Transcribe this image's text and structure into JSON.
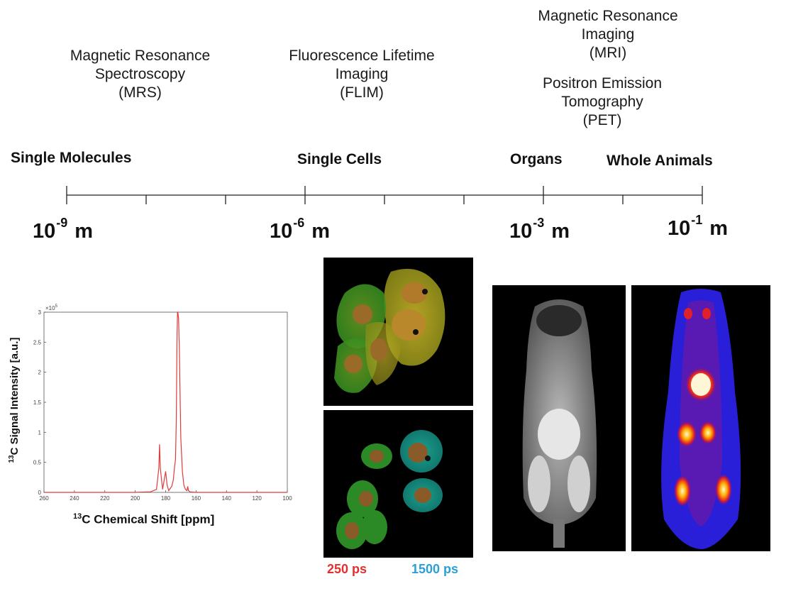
{
  "techniques": {
    "mrs": [
      "Magnetic Resonance",
      "Spectroscopy",
      "(MRS)"
    ],
    "flim": [
      "Fluorescence Lifetime",
      "Imaging",
      "(FLIM)"
    ],
    "mri": [
      "Magnetic Resonance",
      "Imaging",
      "(MRI)"
    ],
    "pet": [
      "Positron Emission",
      "Tomography",
      "(PET)"
    ]
  },
  "scales": {
    "molecules": "Single Molecules",
    "cells": "Single Cells",
    "organs": "Organs",
    "animals": "Whole Animals"
  },
  "magnitudes": [
    {
      "base": "10",
      "exp": "-9",
      "unit": "m"
    },
    {
      "base": "10",
      "exp": "-6",
      "unit": "m"
    },
    {
      "base": "10",
      "exp": "-3",
      "unit": "m"
    },
    {
      "base": "10",
      "exp": "-1",
      "unit": "m"
    }
  ],
  "flim_captions": {
    "short": "250 ps",
    "long": "1500 ps",
    "short_color": "#e03030",
    "long_color": "#2a9fd8"
  },
  "colors": {
    "spectrum_line": "#e03b3b",
    "axis": "#444444"
  },
  "chart_data": {
    "type": "line",
    "title": "",
    "xlabel_sup": "13",
    "xlabel": "C Chemical Shift [ppm]",
    "ylabel_sup": "13",
    "ylabel": "C Signal Intensity [a.u.]",
    "y_multiplier": "×10",
    "y_multiplier_exp": "5",
    "xlim": [
      260,
      100
    ],
    "ylim": [
      0,
      3
    ],
    "x_ticks": [
      "260",
      "240",
      "220",
      "200",
      "180",
      "160",
      "140",
      "120",
      "100"
    ],
    "y_ticks": [
      "0",
      "0.5",
      "1",
      "1.5",
      "2",
      "2.5",
      "3"
    ],
    "series": [
      {
        "name": "spectrum",
        "x": [
          260,
          200,
          190,
          186,
          184.5,
          184,
          183.5,
          182,
          181,
          180,
          179,
          178,
          176,
          175,
          174.2,
          173.5,
          173,
          172.5,
          172.2,
          172,
          171.5,
          171,
          170.5,
          170,
          169,
          168,
          167,
          166,
          165.5,
          165,
          164,
          160,
          100
        ],
        "y": [
          0,
          0,
          0.01,
          0.05,
          0.4,
          0.8,
          0.4,
          0.05,
          0.2,
          0.35,
          0.12,
          0.03,
          0.1,
          0.2,
          0.4,
          0.55,
          1.2,
          2.6,
          3.0,
          3.0,
          2.9,
          2.4,
          1.6,
          0.9,
          0.35,
          0.12,
          0.05,
          0.03,
          0.1,
          0.03,
          0.01,
          0,
          0
        ]
      }
    ]
  }
}
